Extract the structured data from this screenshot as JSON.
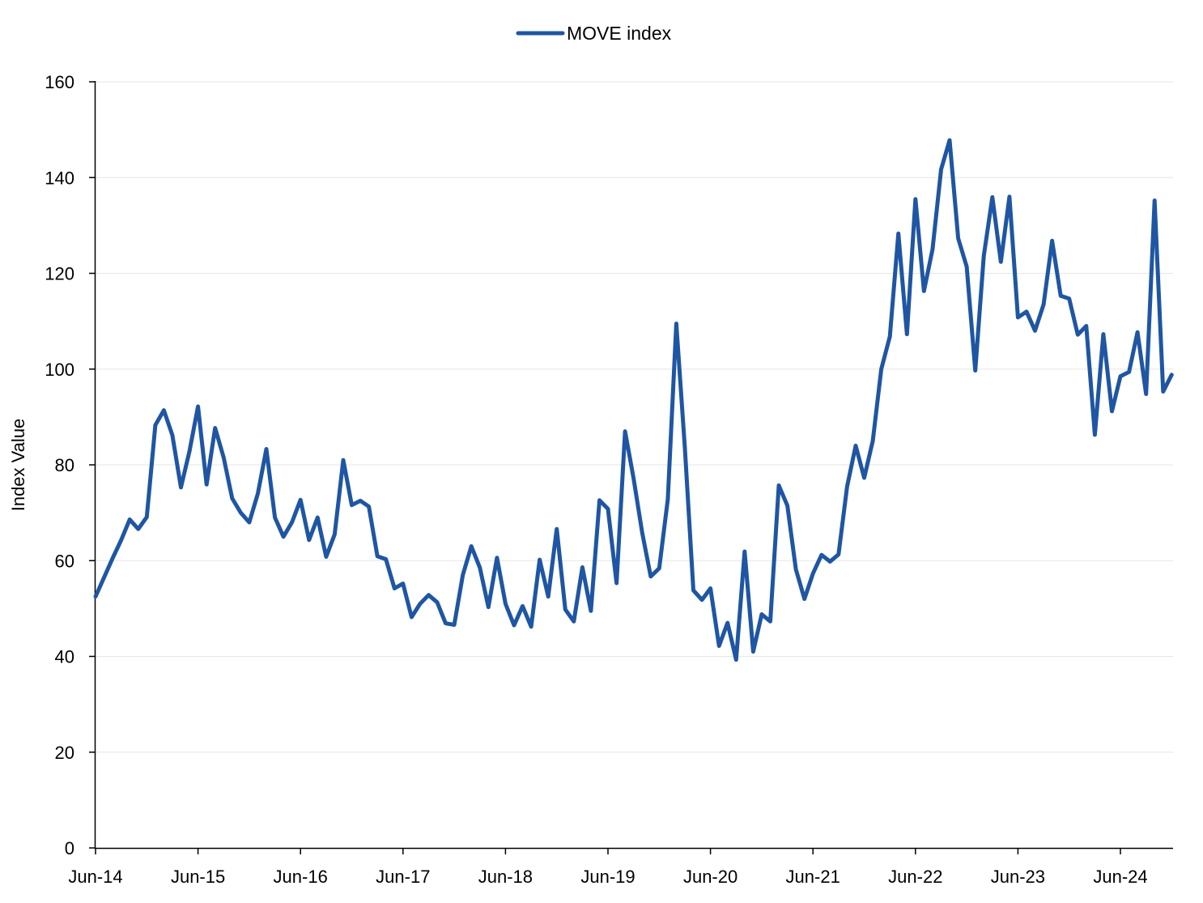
{
  "chart_data": {
    "type": "line",
    "title": "",
    "xlabel": "",
    "ylabel": "Index Value",
    "ylim": [
      0,
      160
    ],
    "yticks": [
      0,
      20,
      40,
      60,
      80,
      100,
      120,
      140,
      160
    ],
    "grid": "horizontal",
    "legend_position": "top-center",
    "x_tick_labels": [
      "Jun-14",
      "Jun-15",
      "Jun-16",
      "Jun-17",
      "Jun-18",
      "Jun-19",
      "Jun-20",
      "Jun-21",
      "Jun-22",
      "Jun-23",
      "Jun-24"
    ],
    "x_start": "Jun-14",
    "x_frequency": "monthly",
    "series": [
      {
        "name": "MOVE index",
        "color": "#1f56a3",
        "values": [
          52.5,
          56.5,
          60.5,
          64.3,
          68.6,
          66.6,
          69.1,
          88.3,
          91.4,
          86.2,
          75.3,
          82.9,
          92.2,
          75.9,
          87.7,
          81.5,
          73.0,
          70.0,
          68.0,
          74.0,
          83.3,
          69.0,
          65.0,
          68.0,
          72.7,
          64.3,
          69.0,
          60.8,
          65.5,
          81.0,
          71.6,
          72.5,
          71.3,
          60.9,
          60.3,
          54.2,
          55.2,
          48.2,
          51.0,
          52.8,
          51.3,
          46.9,
          46.6,
          57.0,
          63.0,
          58.5,
          50.3,
          60.6,
          51.0,
          46.5,
          50.5,
          46.2,
          60.2,
          52.5,
          66.6,
          49.8,
          47.3,
          58.6,
          49.5,
          72.6,
          70.8,
          55.3,
          87.0,
          77.1,
          65.9,
          56.7,
          58.4,
          72.8,
          109.5,
          83.5,
          53.8,
          51.8,
          54.2,
          42.2,
          47.0,
          39.3,
          61.9,
          41.0,
          48.8,
          47.3,
          75.7,
          71.5,
          58.2,
          52.0,
          57.3,
          61.2,
          59.8,
          61.3,
          75.5,
          84.0,
          77.3,
          85.0,
          100.0,
          106.8,
          128.3,
          107.3,
          135.5,
          116.3,
          125.0,
          141.7,
          147.8,
          127.3,
          121.4,
          99.7,
          123.6,
          135.9,
          122.4,
          136.0,
          110.8,
          112.0,
          108.0,
          113.5,
          126.8,
          115.3,
          114.7,
          107.2,
          109.0,
          86.3,
          107.3,
          91.2,
          98.5,
          99.4,
          107.7,
          94.8,
          135.2,
          95.3,
          98.8
        ]
      }
    ]
  }
}
